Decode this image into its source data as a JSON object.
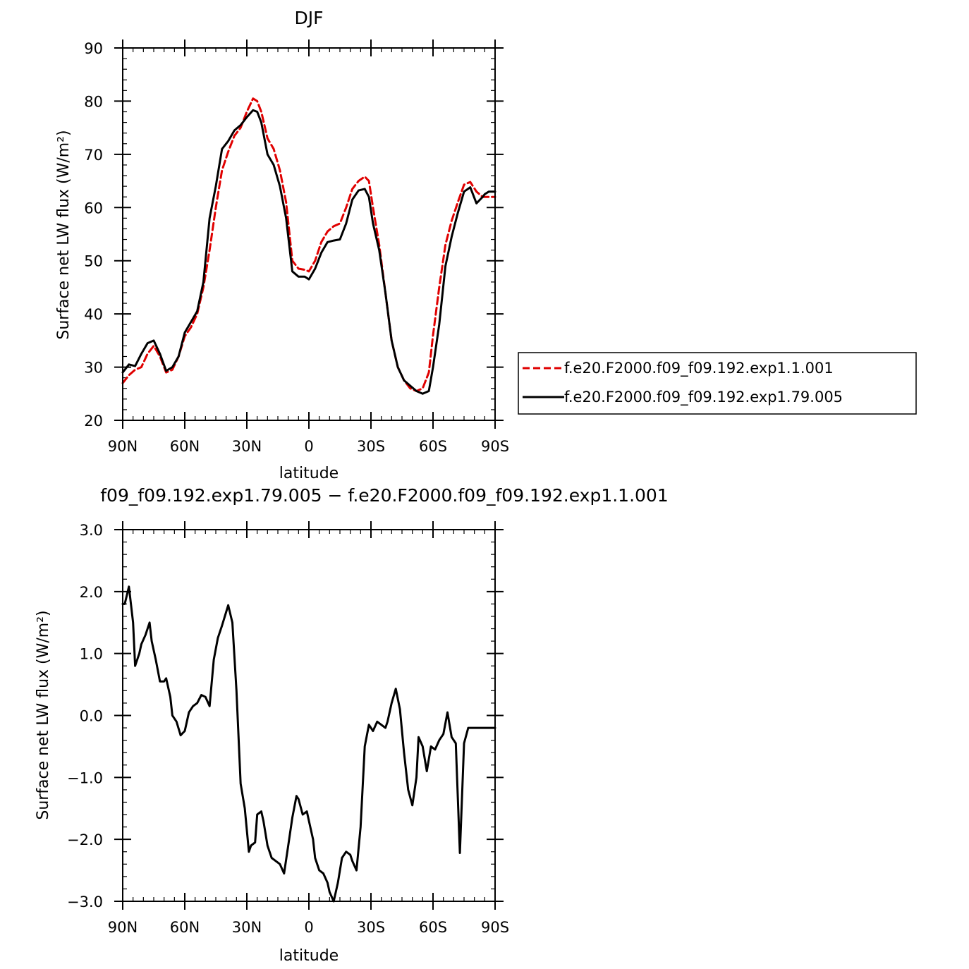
{
  "chart_data": [
    {
      "type": "line",
      "title": "DJF",
      "xlabel": "latitude",
      "ylabel": "Surface net LW flux (W/m²)",
      "xlim": [
        90,
        -90
      ],
      "ylim": [
        20,
        90
      ],
      "xticks": [
        90,
        60,
        30,
        0,
        -30,
        -60,
        -90
      ],
      "xtick_labels": [
        "90N",
        "60N",
        "30N",
        "0",
        "30S",
        "60S",
        "90S"
      ],
      "yticks": [
        20,
        30,
        40,
        50,
        60,
        70,
        80,
        90
      ],
      "ytick_labels": [
        "20",
        "30",
        "40",
        "50",
        "60",
        "70",
        "80",
        "90"
      ],
      "legend_position": "right",
      "series": [
        {
          "name": "f.e20.F2000.f09_f09.192.exp1.1.001",
          "color": "#e00000",
          "style": "dashed",
          "x": [
            90,
            87,
            84,
            81,
            78,
            75,
            72,
            69,
            66,
            63,
            60,
            57,
            54,
            51,
            48,
            45,
            42,
            39,
            36,
            33,
            30,
            27,
            25,
            23,
            20,
            17,
            14,
            11,
            8,
            5,
            2,
            0,
            -3,
            -6,
            -9,
            -12,
            -15,
            -18,
            -21,
            -24,
            -27,
            -29,
            -31,
            -34,
            -37,
            -40,
            -43,
            -46,
            -49,
            -52,
            -55,
            -58,
            -60,
            -63,
            -66,
            -69,
            -72,
            -75,
            -78,
            -81,
            -84,
            -85,
            -87,
            -90
          ],
          "y": [
            27,
            28.5,
            29.5,
            30,
            32.5,
            34,
            32,
            29,
            29.5,
            32,
            35.8,
            37.5,
            40,
            45,
            52,
            60,
            67,
            70.5,
            73.5,
            75,
            78,
            80.5,
            80,
            78,
            73,
            71,
            67,
            61,
            50,
            48.5,
            48.3,
            48,
            50,
            53.5,
            55.5,
            56.5,
            57,
            60,
            63.5,
            65,
            65.8,
            65,
            60,
            53,
            44,
            35,
            30,
            27.5,
            26,
            25.5,
            26,
            29,
            36,
            45,
            53,
            57.5,
            61,
            64.3,
            64.8,
            63,
            62,
            62,
            62,
            62
          ]
        },
        {
          "name": "f.e20.F2000.f09_f09.192.exp1.79.005",
          "color": "#000000",
          "style": "solid",
          "x": [
            90,
            87,
            84,
            81,
            78,
            75,
            72,
            69,
            66,
            63,
            60,
            57,
            54,
            51,
            48,
            45,
            42,
            39,
            36,
            33,
            30,
            27,
            25,
            23,
            20,
            17,
            14,
            11,
            8,
            5,
            2,
            0,
            -3,
            -6,
            -9,
            -12,
            -15,
            -18,
            -21,
            -24,
            -27,
            -29,
            -31,
            -34,
            -37,
            -40,
            -43,
            -46,
            -49,
            -52,
            -55,
            -58,
            -60,
            -63,
            -66,
            -69,
            -72,
            -75,
            -78,
            -81,
            -84,
            -85,
            -87,
            -90
          ],
          "y": [
            29,
            30.5,
            30.2,
            32.5,
            34.5,
            35,
            32.5,
            29.3,
            30,
            32,
            36.5,
            38.5,
            40.5,
            46,
            58,
            64,
            71,
            72.5,
            74.5,
            75.5,
            77,
            78.3,
            78,
            76,
            70,
            68,
            64,
            58,
            48,
            47,
            47,
            46.5,
            48.5,
            51.5,
            53.5,
            53.8,
            54,
            57,
            61.5,
            63.2,
            63.5,
            62,
            57,
            52,
            44,
            35,
            30,
            27.5,
            26.5,
            25.5,
            25,
            25.5,
            30,
            38,
            49,
            54.5,
            59,
            63,
            63.8,
            60.8,
            62,
            62.5,
            63,
            63
          ]
        }
      ]
    },
    {
      "type": "line",
      "title": "f09_f09.192.exp1.79.005 − f.e20.F2000.f09_f09.192.exp1.1.001",
      "xlabel": "latitude",
      "ylabel": "Surface net LW flux (W/m²)",
      "xlim": [
        90,
        -90
      ],
      "ylim": [
        -3.0,
        3.0
      ],
      "xticks": [
        90,
        60,
        30,
        0,
        -30,
        -60,
        -90
      ],
      "xtick_labels": [
        "90N",
        "60N",
        "30N",
        "0",
        "30S",
        "60S",
        "90S"
      ],
      "yticks": [
        -3,
        -2,
        -1,
        0,
        1,
        2,
        3
      ],
      "ytick_labels": [
        "−3.0",
        "−2.0",
        "−1.0",
        "0.0",
        "1.0",
        "2.0",
        "3.0"
      ],
      "series": [
        {
          "name": "",
          "color": "#000000",
          "style": "solid",
          "x": [
            90,
            89,
            87,
            85,
            84,
            82,
            81,
            79,
            77,
            76,
            74,
            72,
            70,
            69,
            67,
            66,
            64,
            62,
            60,
            58,
            56,
            54,
            52,
            50,
            48,
            46,
            44,
            42,
            39,
            37,
            35,
            33,
            31,
            29,
            28,
            26,
            25,
            23,
            22,
            20,
            18,
            16,
            14,
            12,
            10,
            8,
            6,
            5,
            3,
            1,
            0,
            -2,
            -3,
            -5,
            -7,
            -9,
            -10,
            -12,
            -14,
            -16,
            -18,
            -20,
            -21,
            -23,
            -25,
            -27,
            -29,
            -31,
            -33,
            -35,
            -37,
            -38,
            -40,
            -42,
            -44,
            -46,
            -48,
            -50,
            -52,
            -53,
            -55,
            -57,
            -59,
            -61,
            -63,
            -65,
            -67,
            -69,
            -71,
            -73,
            -75,
            -77,
            -79,
            -81,
            -83,
            -85,
            -87,
            -89,
            -90
          ],
          "y": [
            1.8,
            1.8,
            2.08,
            1.5,
            0.8,
            1.0,
            1.15,
            1.3,
            1.5,
            1.2,
            0.9,
            0.55,
            0.55,
            0.6,
            0.3,
            0.0,
            -0.1,
            -0.32,
            -0.25,
            0.05,
            0.15,
            0.2,
            0.33,
            0.3,
            0.15,
            0.9,
            1.25,
            1.45,
            1.78,
            1.5,
            0.4,
            -1.1,
            -1.5,
            -2.2,
            -2.1,
            -2.05,
            -1.6,
            -1.55,
            -1.7,
            -2.1,
            -2.3,
            -2.35,
            -2.4,
            -2.55,
            -2.1,
            -1.65,
            -1.3,
            -1.35,
            -1.6,
            -1.55,
            -1.7,
            -2.0,
            -2.3,
            -2.5,
            -2.55,
            -2.7,
            -2.85,
            -3.0,
            -2.7,
            -2.3,
            -2.2,
            -2.25,
            -2.35,
            -2.5,
            -1.8,
            -0.5,
            -0.15,
            -0.25,
            -0.1,
            -0.15,
            -0.2,
            -0.1,
            0.2,
            0.43,
            0.1,
            -0.6,
            -1.2,
            -1.45,
            -1.0,
            -0.35,
            -0.5,
            -0.9,
            -0.5,
            -0.55,
            -0.4,
            -0.3,
            0.05,
            -0.35,
            -0.45,
            -2.22,
            -0.45,
            -0.2,
            -0.2,
            -0.2,
            -0.2,
            -0.2,
            -0.2,
            -0.2,
            -0.2
          ]
        }
      ]
    }
  ]
}
